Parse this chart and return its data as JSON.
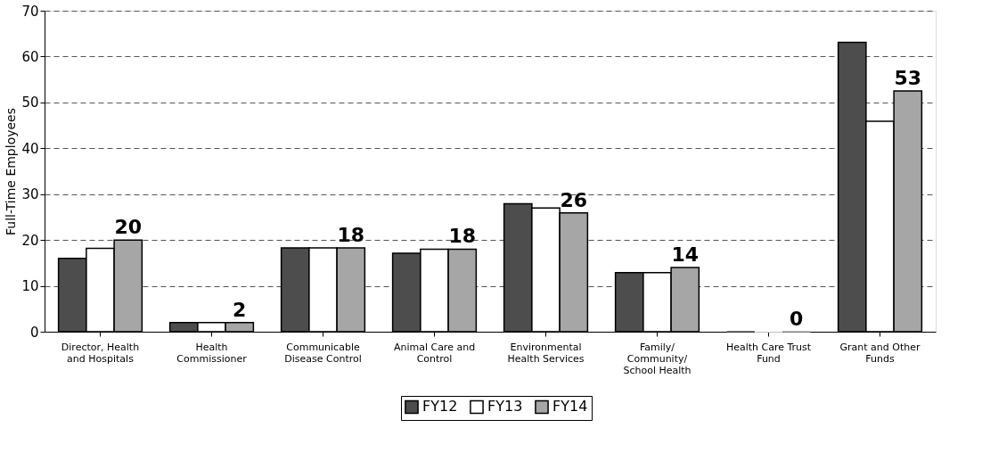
{
  "chart_data": {
    "type": "bar",
    "ylabel": "Full-Time Employees",
    "categories": [
      "Director, Health\nand Hospitals",
      "Health\nCommissioner",
      "Communicable\nDisease Control",
      "Animal Care and\nControl",
      "Environmental\nHealth Services",
      "Family/\nCommunity/\nSchool Health",
      "Health Care Trust\nFund",
      "Grant and Other\nFunds"
    ],
    "series": [
      {
        "name": "FY12",
        "color": "#4d4d4d",
        "values": [
          16.0,
          2.0,
          18.3,
          17.1,
          27.9,
          12.9,
          0,
          63.1
        ]
      },
      {
        "name": "FY13",
        "color": "#ffffff",
        "values": [
          18.2,
          2.0,
          18.3,
          18.0,
          27.0,
          12.9,
          0,
          45.9
        ]
      },
      {
        "name": "FY14",
        "color": "#a6a6a6",
        "values": [
          20.0,
          2.0,
          18.3,
          18.0,
          25.9,
          14.0,
          0,
          52.5
        ],
        "value_labels": [
          "20",
          "2",
          "18",
          "18",
          "26",
          "14",
          "0",
          "53"
        ]
      }
    ],
    "ylim": [
      0,
      70
    ],
    "yticks": [
      0,
      10,
      20,
      30,
      40,
      50,
      60,
      70
    ],
    "grid": "y",
    "legend": "bottom"
  }
}
